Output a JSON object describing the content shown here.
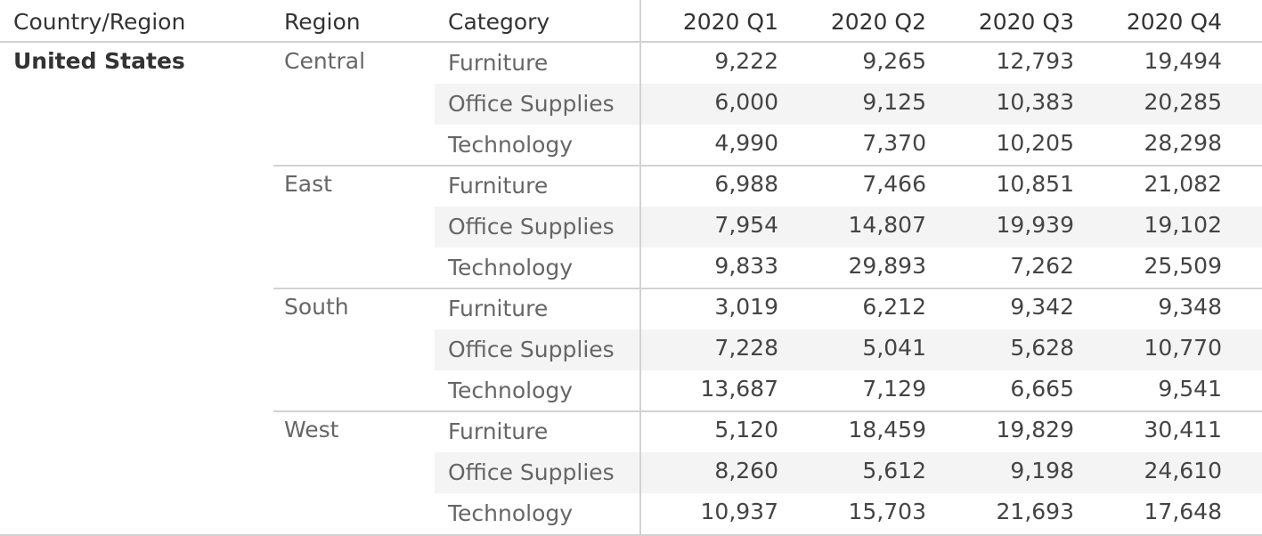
{
  "chart_data": {
    "type": "table",
    "headers": {
      "country": "Country/Region",
      "region": "Region",
      "category": "Category",
      "quarters": [
        "2020 Q1",
        "2020 Q2",
        "2020 Q3",
        "2020 Q4"
      ]
    },
    "country": "United States",
    "regions": [
      {
        "name": "Central",
        "rows": [
          {
            "category": "Furniture",
            "values": [
              "9,222",
              "9,265",
              "12,793",
              "19,494"
            ]
          },
          {
            "category": "Office Supplies",
            "values": [
              "6,000",
              "9,125",
              "10,383",
              "20,285"
            ]
          },
          {
            "category": "Technology",
            "values": [
              "4,990",
              "7,370",
              "10,205",
              "28,298"
            ]
          }
        ]
      },
      {
        "name": "East",
        "rows": [
          {
            "category": "Furniture",
            "values": [
              "6,988",
              "7,466",
              "10,851",
              "21,082"
            ]
          },
          {
            "category": "Office Supplies",
            "values": [
              "7,954",
              "14,807",
              "19,939",
              "19,102"
            ]
          },
          {
            "category": "Technology",
            "values": [
              "9,833",
              "29,893",
              "7,262",
              "25,509"
            ]
          }
        ]
      },
      {
        "name": "South",
        "rows": [
          {
            "category": "Furniture",
            "values": [
              "3,019",
              "6,212",
              "9,342",
              "9,348"
            ]
          },
          {
            "category": "Office Supplies",
            "values": [
              "7,228",
              "5,041",
              "5,628",
              "10,770"
            ]
          },
          {
            "category": "Technology",
            "values": [
              "13,687",
              "7,129",
              "6,665",
              "9,541"
            ]
          }
        ]
      },
      {
        "name": "West",
        "rows": [
          {
            "category": "Furniture",
            "values": [
              "5,120",
              "18,459",
              "19,829",
              "30,411"
            ]
          },
          {
            "category": "Office Supplies",
            "values": [
              "8,260",
              "5,612",
              "9,198",
              "24,610"
            ]
          },
          {
            "category": "Technology",
            "values": [
              "10,937",
              "15,703",
              "21,693",
              "17,648"
            ]
          }
        ]
      }
    ],
    "colors": {
      "row_band": "#f4f4f4",
      "divider": "#d2d2d2",
      "header_text": "#333333",
      "dimension_text": "#666666"
    }
  }
}
